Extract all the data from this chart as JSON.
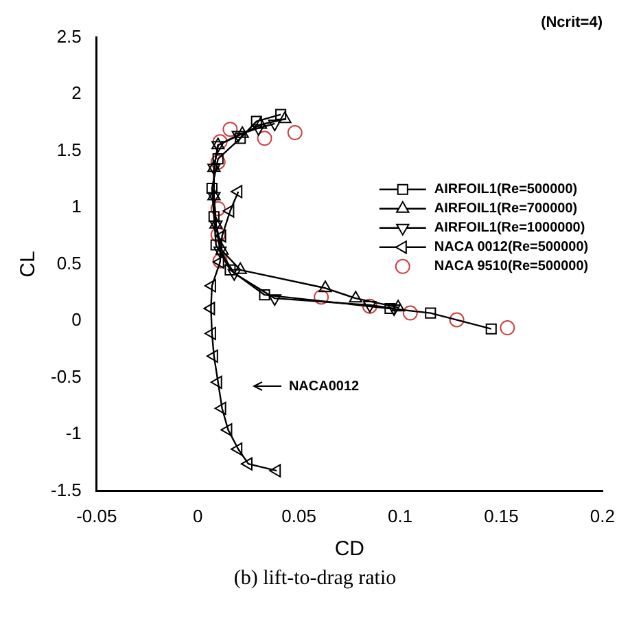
{
  "chart_data": {
    "type": "line",
    "title": "(Ncrit=4)",
    "xlabel": "CD",
    "ylabel": "CL",
    "xlim": [
      -0.05,
      0.2
    ],
    "xticks": [
      -0.05,
      0,
      0.05,
      0.1,
      0.15,
      0.2
    ],
    "ylim": [
      -1.5,
      2.5
    ],
    "yticks": [
      -1.5,
      -1,
      -0.5,
      0,
      0.5,
      1,
      1.5,
      2,
      2.5
    ],
    "grid": false,
    "legend": "right",
    "line_style": "solid",
    "series": [
      {
        "name": "AIRFOIL1(Re=500000)",
        "color": "#000000",
        "marker": "square",
        "x": [
          0.145,
          0.115,
          0.095,
          0.033,
          0.016,
          0.009,
          0.008,
          0.007,
          0.01,
          0.021,
          0.029,
          0.041
        ],
        "values": [
          -0.07,
          0.07,
          0.11,
          0.23,
          0.45,
          0.67,
          0.92,
          1.17,
          1.43,
          1.61,
          1.76,
          1.82
        ]
      },
      {
        "name": "AIRFOIL1(Re=700000)",
        "color": "#000000",
        "marker": "triangle",
        "x": [
          0.099,
          0.078,
          0.063,
          0.021,
          0.012,
          0.009,
          0.008,
          0.008,
          0.01,
          0.022,
          0.031,
          0.043
        ],
        "values": [
          0.12,
          0.2,
          0.29,
          0.45,
          0.62,
          0.85,
          1.1,
          1.35,
          1.55,
          1.65,
          1.73,
          1.78
        ]
      },
      {
        "name": "AIRFOIL1(Re=1000000)",
        "color": "#000000",
        "marker": "triangle-down",
        "x": [
          0.097,
          0.085,
          0.038,
          0.018,
          0.011,
          0.009,
          0.008,
          0.008,
          0.01,
          0.02,
          0.03,
          0.038
        ],
        "values": [
          0.11,
          0.14,
          0.2,
          0.42,
          0.62,
          0.85,
          1.1,
          1.35,
          1.55,
          1.64,
          1.7,
          1.74
        ]
      },
      {
        "name": "NACA 0012(Re=500000)",
        "color": "#000000",
        "marker": "triangle-left",
        "x": [
          0.039,
          0.025,
          0.02,
          0.015,
          0.012,
          0.01,
          0.008,
          0.007,
          0.0065,
          0.007,
          0.011,
          0.012,
          0.016,
          0.02
        ],
        "values": [
          -1.32,
          -1.26,
          -1.13,
          -0.96,
          -0.77,
          -0.54,
          -0.31,
          -0.11,
          0.11,
          0.31,
          0.52,
          0.75,
          0.97,
          1.14
        ]
      },
      {
        "name": "NACA 9510(Re=500000)",
        "type": "scatter",
        "color": "#d04040",
        "marker": "circle",
        "x": [
          0.011,
          0.01,
          0.01,
          0.01,
          0.011,
          0.016,
          0.033,
          0.048,
          0.061,
          0.085,
          0.105,
          0.128,
          0.153
        ],
        "values": [
          0.53,
          0.76,
          0.99,
          1.4,
          1.58,
          1.69,
          1.61,
          1.66,
          0.21,
          0.13,
          0.07,
          0.01,
          -0.06
        ]
      }
    ],
    "annotations": [
      "NACA0012",
      "(b) lift-to-drag ratio"
    ]
  }
}
